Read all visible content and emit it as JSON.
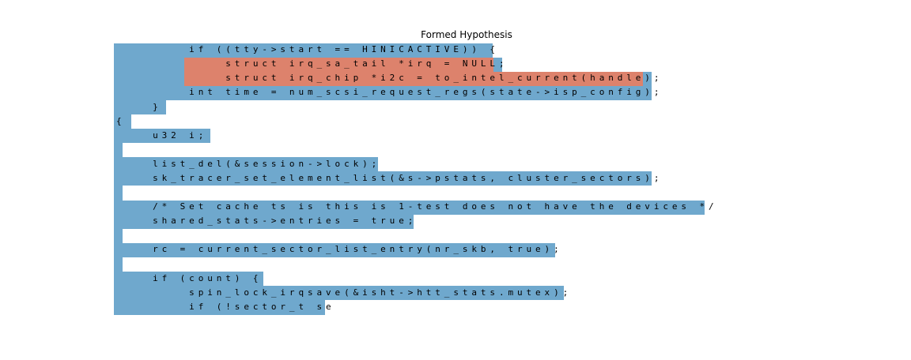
{
  "title": "Formed Hypothesis",
  "colors": {
    "inactive": "#6fa8cd",
    "active": "#dd826c",
    "background": "#ffffff"
  },
  "lines": [
    "        if ((tty->start == HINICACTIVE)) {",
    "            struct irq_sa_tail *irq = NULL;",
    "            struct irq_chip *i2c = to_intel_current(handle);",
    "        int time = num_scsi_request_regs(state->isp_config);",
    "    }",
    "{",
    "    u32 i;",
    "",
    "    list_del(&session->lock);",
    "    sk_tracer_set_element_list(&s->pstats, cluster_sectors);",
    "",
    "    /* Set cache ts is this is 1-test does not have the devices */",
    "    shared_stats->entries = true;",
    "",
    "    rc = current_sector_list_entry(nr_skb, true);",
    "",
    "    if (count) {",
    "        spin_lock_irqsave(&isht->htt_stats.mutex);",
    "        if (!sector_t se"
  ]
}
